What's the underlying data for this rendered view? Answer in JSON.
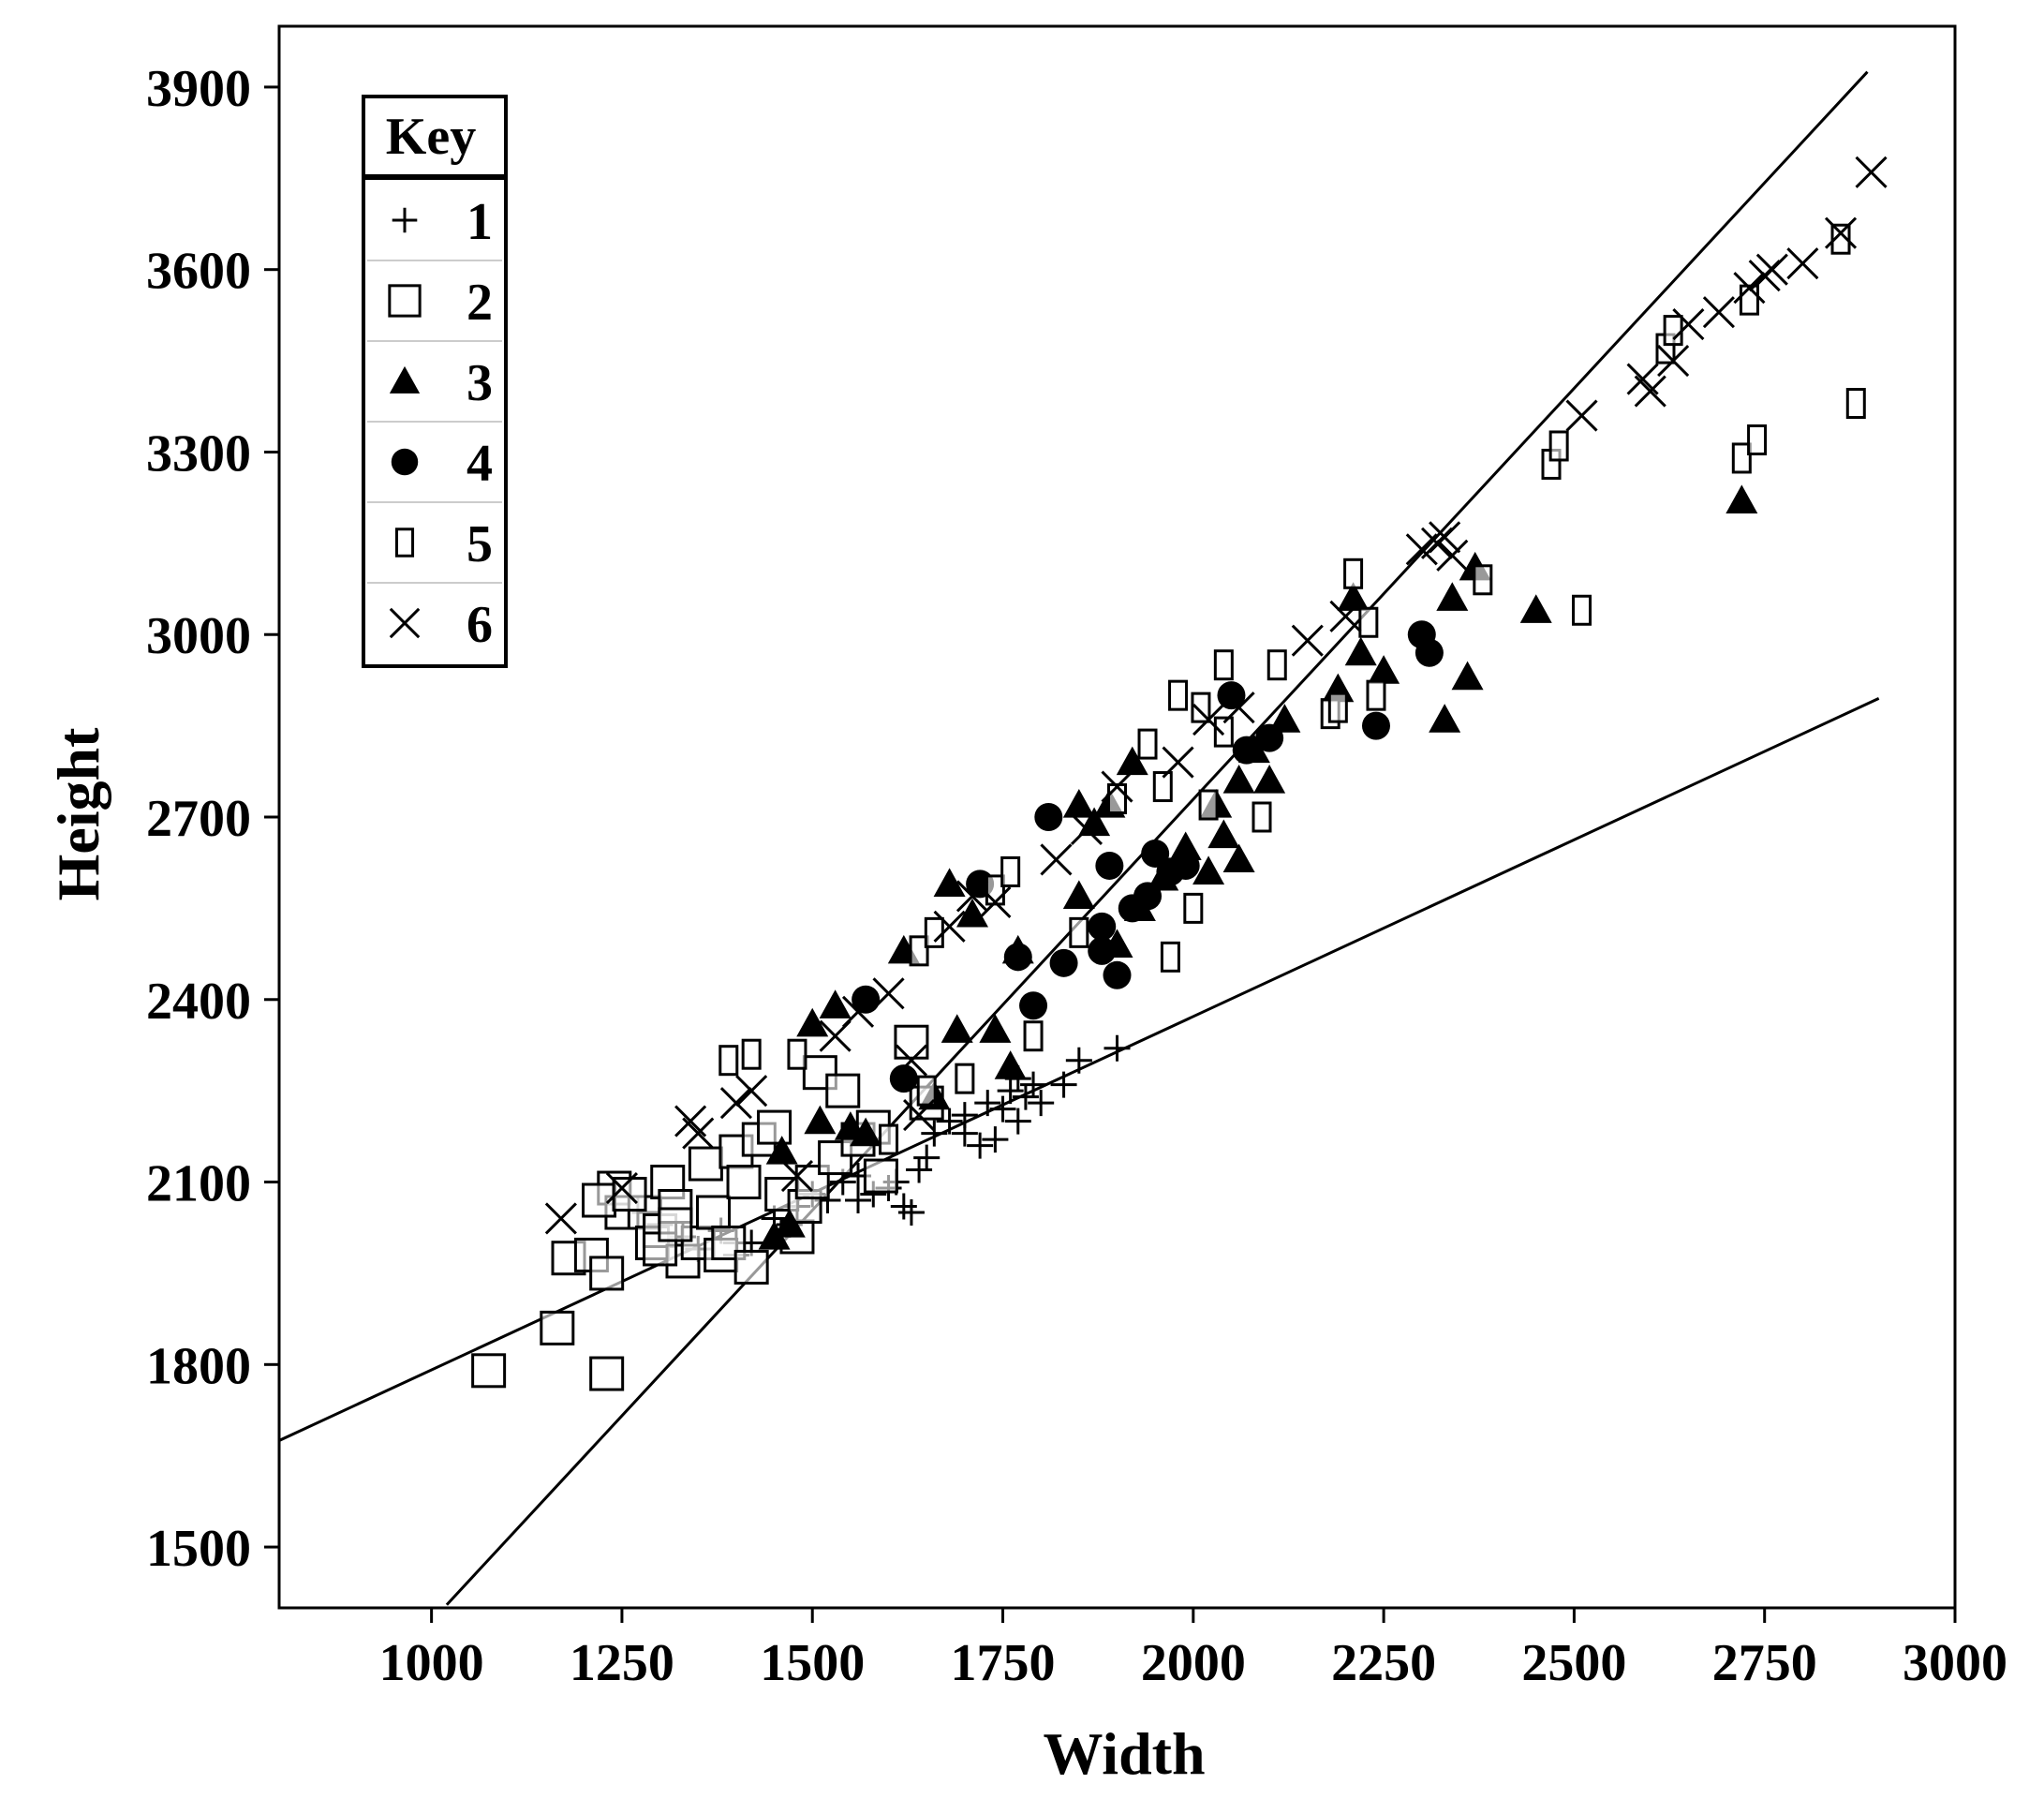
{
  "chart_data": {
    "type": "scatter",
    "xlabel": "Width",
    "ylabel": "Height",
    "xlim": [
      800,
      3000
    ],
    "ylim": [
      1400,
      4000
    ],
    "xticks": [
      1000,
      1250,
      1500,
      1750,
      2000,
      2250,
      2500,
      2750,
      3000
    ],
    "yticks": [
      1500,
      1800,
      2100,
      2400,
      2700,
      3000,
      3300,
      3600,
      3900
    ],
    "grid": false,
    "legend": {
      "title": "Key",
      "placement": "top-left",
      "entries": [
        {
          "label": "1",
          "marker": "plus"
        },
        {
          "label": "2",
          "marker": "square-large"
        },
        {
          "label": "3",
          "marker": "triangle"
        },
        {
          "label": "4",
          "marker": "circle"
        },
        {
          "label": "5",
          "marker": "rect-tall"
        },
        {
          "label": "6",
          "marker": "cross"
        }
      ]
    },
    "lines": [
      {
        "points": [
          [
            800,
            1675
          ],
          [
            2900,
            2895
          ]
        ]
      },
      {
        "points": [
          [
            1020,
            1405
          ],
          [
            2885,
            3925
          ]
        ]
      }
    ],
    "series": [
      {
        "name": "1",
        "marker": "plus",
        "points": [
          [
            1280,
            2050
          ],
          [
            1300,
            2030
          ],
          [
            1330,
            2010
          ],
          [
            1350,
            1990
          ],
          [
            1380,
            2020
          ],
          [
            1400,
            1980
          ],
          [
            1420,
            2000
          ],
          [
            1450,
            2040
          ],
          [
            1480,
            2060
          ],
          [
            1500,
            2080
          ],
          [
            1520,
            2070
          ],
          [
            1540,
            2100
          ],
          [
            1560,
            2110
          ],
          [
            1580,
            2080
          ],
          [
            1600,
            2090
          ],
          [
            1620,
            2060
          ],
          [
            1630,
            2050
          ],
          [
            1640,
            2120
          ],
          [
            1650,
            2140
          ],
          [
            1660,
            2180
          ],
          [
            1680,
            2200
          ],
          [
            1700,
            2210
          ],
          [
            1720,
            2160
          ],
          [
            1740,
            2170
          ],
          [
            1750,
            2220
          ],
          [
            1760,
            2250
          ],
          [
            1770,
            2270
          ],
          [
            1780,
            2240
          ],
          [
            1790,
            2260
          ],
          [
            1800,
            2230
          ],
          [
            1830,
            2260
          ],
          [
            1850,
            2300
          ],
          [
            1900,
            2320
          ],
          [
            1610,
            2100
          ],
          [
            1700,
            2180
          ],
          [
            1730,
            2230
          ],
          [
            1770,
            2200
          ],
          [
            1560,
            2070
          ],
          [
            1470,
            2030
          ],
          [
            1400,
            2000
          ]
        ]
      },
      {
        "name": "2",
        "marker": "square-large",
        "points": [
          [
            1075,
            1790
          ],
          [
            1165,
            1860
          ],
          [
            1230,
            1785
          ],
          [
            1180,
            1975
          ],
          [
            1210,
            1980
          ],
          [
            1230,
            1950
          ],
          [
            1240,
            2090
          ],
          [
            1250,
            2050
          ],
          [
            1280,
            2050
          ],
          [
            1290,
            2000
          ],
          [
            1300,
            2020
          ],
          [
            1310,
            2100
          ],
          [
            1320,
            2060
          ],
          [
            1330,
            1970
          ],
          [
            1350,
            2000
          ],
          [
            1360,
            2130
          ],
          [
            1370,
            2050
          ],
          [
            1380,
            1980
          ],
          [
            1390,
            2000
          ],
          [
            1400,
            2150
          ],
          [
            1410,
            2100
          ],
          [
            1420,
            1960
          ],
          [
            1430,
            2170
          ],
          [
            1450,
            2190
          ],
          [
            1460,
            2080
          ],
          [
            1480,
            2010
          ],
          [
            1490,
            2060
          ],
          [
            1500,
            2100
          ],
          [
            1510,
            2280
          ],
          [
            1530,
            2140
          ],
          [
            1540,
            2250
          ],
          [
            1560,
            2170
          ],
          [
            1580,
            2190
          ],
          [
            1590,
            2110
          ],
          [
            1630,
            2330
          ],
          [
            1650,
            2230
          ],
          [
            1220,
            2070
          ],
          [
            1260,
            2080
          ],
          [
            1300,
            1990
          ],
          [
            1320,
            2030
          ]
        ]
      },
      {
        "name": "3",
        "marker": "triangle",
        "points": [
          [
            1450,
            2010
          ],
          [
            1470,
            2030
          ],
          [
            1460,
            2150
          ],
          [
            1500,
            2360
          ],
          [
            1510,
            2200
          ],
          [
            1530,
            2390
          ],
          [
            1550,
            2190
          ],
          [
            1570,
            2180
          ],
          [
            1620,
            2480
          ],
          [
            1680,
            2590
          ],
          [
            1690,
            2350
          ],
          [
            1710,
            2540
          ],
          [
            1740,
            2350
          ],
          [
            1770,
            2480
          ],
          [
            1850,
            2570
          ],
          [
            1850,
            2720
          ],
          [
            1870,
            2690
          ],
          [
            1890,
            2720
          ],
          [
            1900,
            2490
          ],
          [
            1920,
            2790
          ],
          [
            1930,
            2550
          ],
          [
            1960,
            2600
          ],
          [
            1990,
            2650
          ],
          [
            2020,
            2610
          ],
          [
            2030,
            2720
          ],
          [
            2040,
            2670
          ],
          [
            2060,
            2760
          ],
          [
            2060,
            2630
          ],
          [
            2080,
            2810
          ],
          [
            2100,
            2760
          ],
          [
            2120,
            2860
          ],
          [
            2190,
            2910
          ],
          [
            2210,
            3060
          ],
          [
            2220,
            2970
          ],
          [
            2250,
            2940
          ],
          [
            2340,
            3060
          ],
          [
            2360,
            2930
          ],
          [
            2370,
            3110
          ],
          [
            2450,
            3040
          ],
          [
            2330,
            2860
          ],
          [
            2720,
            3220
          ],
          [
            1660,
            2240
          ],
          [
            1760,
            2290
          ]
        ]
      },
      {
        "name": "4",
        "marker": "circle",
        "points": [
          [
            1570,
            2400
          ],
          [
            1620,
            2270
          ],
          [
            1720,
            2590
          ],
          [
            1770,
            2470
          ],
          [
            1790,
            2390
          ],
          [
            1810,
            2700
          ],
          [
            1830,
            2460
          ],
          [
            1880,
            2520
          ],
          [
            1880,
            2480
          ],
          [
            1890,
            2620
          ],
          [
            1900,
            2440
          ],
          [
            1920,
            2550
          ],
          [
            1940,
            2570
          ],
          [
            1950,
            2640
          ],
          [
            1970,
            2610
          ],
          [
            2050,
            2900
          ],
          [
            2070,
            2810
          ],
          [
            2100,
            2830
          ],
          [
            2240,
            2850
          ],
          [
            2300,
            3000
          ],
          [
            2310,
            2970
          ],
          [
            1990,
            2620
          ]
        ]
      },
      {
        "name": "5",
        "marker": "rect-tall",
        "points": [
          [
            1390,
            2300
          ],
          [
            1420,
            2310
          ],
          [
            1480,
            2310
          ],
          [
            1640,
            2480
          ],
          [
            1660,
            2510
          ],
          [
            1700,
            2270
          ],
          [
            1740,
            2580
          ],
          [
            1760,
            2610
          ],
          [
            1790,
            2340
          ],
          [
            1850,
            2510
          ],
          [
            1900,
            2730
          ],
          [
            1940,
            2820
          ],
          [
            1960,
            2750
          ],
          [
            1970,
            2470
          ],
          [
            1980,
            2900
          ],
          [
            2000,
            2550
          ],
          [
            2010,
            2880
          ],
          [
            2020,
            2720
          ],
          [
            2040,
            2840
          ],
          [
            2040,
            2950
          ],
          [
            2090,
            2700
          ],
          [
            2110,
            2950
          ],
          [
            2180,
            2870
          ],
          [
            2190,
            2880
          ],
          [
            2210,
            3100
          ],
          [
            2230,
            3020
          ],
          [
            2240,
            2900
          ],
          [
            2380,
            3090
          ],
          [
            2470,
            3280
          ],
          [
            2480,
            3310
          ],
          [
            2510,
            3040
          ],
          [
            2620,
            3470
          ],
          [
            2630,
            3500
          ],
          [
            2720,
            3290
          ],
          [
            2730,
            3550
          ],
          [
            2740,
            3320
          ],
          [
            2850,
            3650
          ],
          [
            2870,
            3380
          ],
          [
            1650,
            2250
          ],
          [
            1600,
            2170
          ]
        ]
      },
      {
        "name": "6",
        "marker": "cross",
        "points": [
          [
            1170,
            2040
          ],
          [
            1250,
            2090
          ],
          [
            1340,
            2200
          ],
          [
            1350,
            2180
          ],
          [
            1400,
            2230
          ],
          [
            1420,
            2250
          ],
          [
            1530,
            2340
          ],
          [
            1560,
            2380
          ],
          [
            1600,
            2410
          ],
          [
            1630,
            2300
          ],
          [
            1680,
            2520
          ],
          [
            1710,
            2570
          ],
          [
            1740,
            2560
          ],
          [
            1820,
            2630
          ],
          [
            1860,
            2680
          ],
          [
            1900,
            2750
          ],
          [
            1980,
            2790
          ],
          [
            2020,
            2860
          ],
          [
            2060,
            2880
          ],
          [
            2150,
            2990
          ],
          [
            2200,
            3030
          ],
          [
            2300,
            3140
          ],
          [
            2320,
            3150
          ],
          [
            2330,
            3160
          ],
          [
            2340,
            3130
          ],
          [
            2510,
            3360
          ],
          [
            2590,
            3420
          ],
          [
            2600,
            3400
          ],
          [
            2630,
            3450
          ],
          [
            2650,
            3510
          ],
          [
            2690,
            3530
          ],
          [
            2730,
            3570
          ],
          [
            2750,
            3590
          ],
          [
            2760,
            3600
          ],
          [
            2800,
            3610
          ],
          [
            2850,
            3660
          ],
          [
            2890,
            3760
          ],
          [
            1640,
            2210
          ],
          [
            1480,
            2110
          ]
        ]
      }
    ]
  }
}
